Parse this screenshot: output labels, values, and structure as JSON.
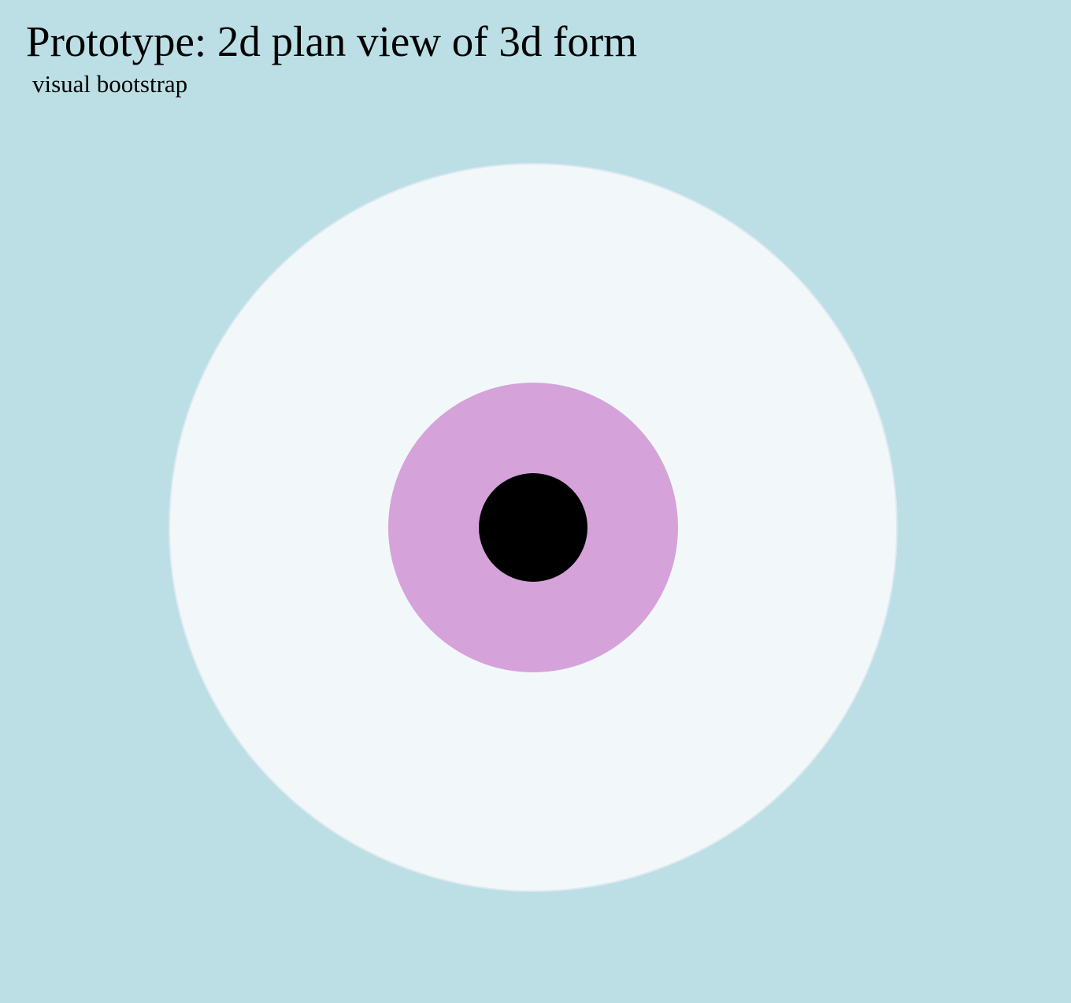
{
  "header": {
    "title": "Prototype: 2d plan view of 3d form",
    "subtitle": "visual bootstrap"
  },
  "diagram": {
    "rings": [
      {
        "name": "outer-disc",
        "fill": "#f2f8fa",
        "stroke": "#dde8f0"
      },
      {
        "name": "middle-disc",
        "fill": "#d5a3da"
      },
      {
        "name": "center-disc",
        "fill": "#000000"
      }
    ]
  },
  "colors": {
    "background": "#bbdfe4"
  }
}
